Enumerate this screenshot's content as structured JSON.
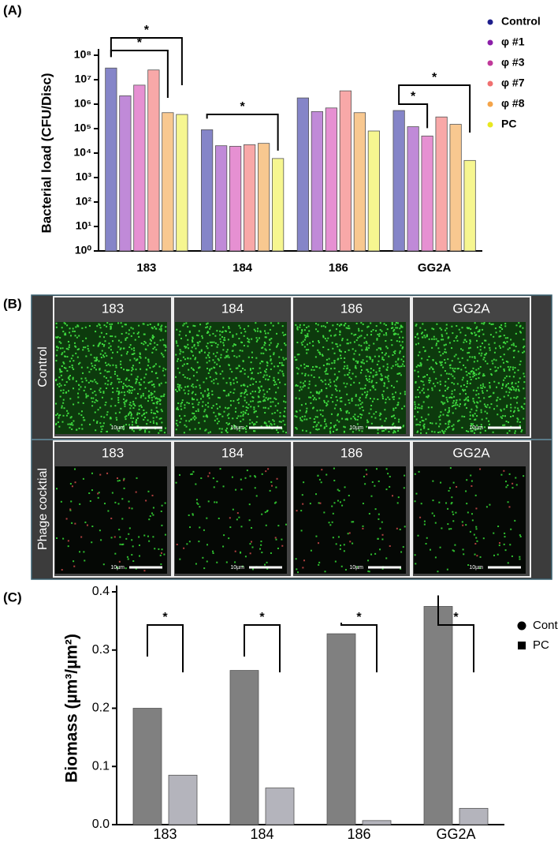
{
  "panel_labels": [
    "(A)",
    "(B)",
    "(C)"
  ],
  "chart_data": [
    {
      "type": "bar",
      "y_label": "Bacterial load (CFU/Disc)",
      "log_scale": true,
      "categories": [
        "183",
        "184",
        "186",
        "GG2A"
      ],
      "series": [
        {
          "name": "Control",
          "color": "#1e1e8c",
          "fill": "#8585c8",
          "values": [
            30000000,
            90000,
            1800000,
            550000
          ]
        },
        {
          "name": "φ #1",
          "color": "#8b1fa8",
          "fill": "#c08ad8",
          "values": [
            2200000,
            20000,
            500000,
            120000
          ]
        },
        {
          "name": "φ #3",
          "color": "#c0399a",
          "fill": "#e690d2",
          "values": [
            6000000,
            19000,
            700000,
            50000
          ]
        },
        {
          "name": "φ #7",
          "color": "#f07070",
          "fill": "#f8a8a8",
          "values": [
            25000000,
            22000,
            3500000,
            300000
          ]
        },
        {
          "name": "φ #8",
          "color": "#f4a44a",
          "fill": "#f8c890",
          "values": [
            450000,
            25000,
            450000,
            150000
          ]
        },
        {
          "name": "PC",
          "color": "#e8e820",
          "fill": "#f6f690",
          "values": [
            380000,
            6000,
            80000,
            5000
          ]
        }
      ],
      "ylim": [
        1,
        100000000
      ],
      "yticks": [
        {
          "value": 1,
          "label": "10⁰"
        },
        {
          "value": 10,
          "label": "10¹"
        },
        {
          "value": 100,
          "label": "10²"
        },
        {
          "value": 1000,
          "label": "10³"
        },
        {
          "value": 10000,
          "label": "10⁴"
        },
        {
          "value": 100000,
          "label": "10⁵"
        },
        {
          "value": 1000000,
          "label": "10⁶"
        },
        {
          "value": 10000000,
          "label": "10⁷"
        },
        {
          "value": 100000000,
          "label": "10⁸"
        }
      ],
      "annotations": [
        "*",
        "*",
        "*",
        "*",
        "*"
      ]
    },
    {
      "type": "bar",
      "y_label": "Biomass (µm³/µm²)",
      "log_scale": false,
      "categories": [
        "183",
        "184",
        "186",
        "GG2A"
      ],
      "series": [
        {
          "name": "Control",
          "color": "#000000",
          "fill": "#808080",
          "marker": "circle",
          "values": [
            0.2,
            0.265,
            0.328,
            0.375
          ]
        },
        {
          "name": "PC",
          "color": "#000000",
          "fill": "#b4b4bc",
          "marker": "square",
          "values": [
            0.085,
            0.063,
            0.007,
            0.028
          ]
        }
      ],
      "ylim": [
        0,
        0.4
      ],
      "yticks": [
        {
          "value": 0,
          "label": "0.0"
        },
        0.1,
        0.2,
        0.3,
        0.4
      ],
      "annotations": [
        "*",
        "*",
        "*",
        "*"
      ]
    }
  ],
  "image_grid": {
    "columns": [
      "183",
      "184",
      "186",
      "GG2A"
    ],
    "rows": [
      "Control",
      "Phage cocktial"
    ],
    "scale_bar": "10µm"
  }
}
